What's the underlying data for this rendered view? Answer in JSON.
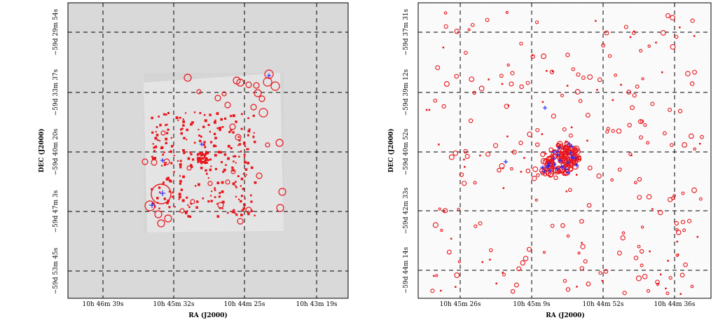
{
  "panels": [
    {
      "id": "left",
      "xlabel": "RA (J2000)",
      "ylabel": "DEC (J2000)",
      "xticks": [
        "10h 46m 39s",
        "10h 45m 32s",
        "10h 44m 25s",
        "10h 43m 19s"
      ],
      "yticks": [
        "−59d 29m 54s",
        "−59d 33m 37s",
        "−59d 40m 20s",
        "−59d 47m 3s",
        "−59d 53m 45s"
      ]
    },
    {
      "id": "right",
      "xlabel": "RA (J2000)",
      "ylabel": "DEC (J2000)",
      "xticks": [
        "10h 45m 26s",
        "10h 45m 9s",
        "10h 44m 52s",
        "10h 44m 36s"
      ],
      "yticks": [
        "−59d 37m 31s",
        "−59d 39m 12s",
        "−59d 40m 52s",
        "−59d 42m 33s",
        "−59d 44m 14s"
      ]
    }
  ],
  "colors": {
    "source_marker": "#e8151b",
    "cross_marker": "#2a2aff",
    "grid": "#000000",
    "left_background": "#d9d9d9",
    "right_background": "#ffffff"
  }
}
